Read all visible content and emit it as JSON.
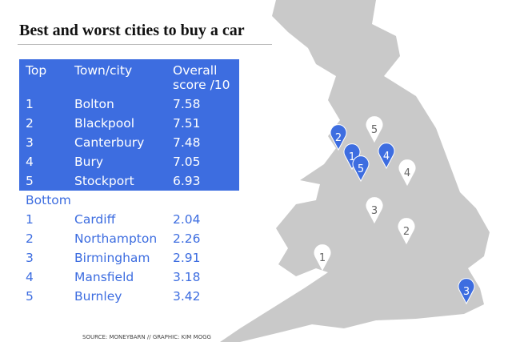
{
  "header": {
    "title": "Best and worst cities to buy a car"
  },
  "table": {
    "columns": [
      "Top",
      "Town/city",
      "Overall score /10"
    ],
    "top_rows": [
      [
        1,
        "Bolton",
        7.58
      ],
      [
        2,
        "Blackpool",
        7.51
      ],
      [
        3,
        "Canterbury",
        7.48
      ],
      [
        4,
        "Bury",
        7.05
      ],
      [
        5,
        "Stockport",
        6.93
      ]
    ],
    "bottom_label": "Bottom",
    "bottom_rows": [
      [
        1,
        "Cardiff",
        2.04
      ],
      [
        2,
        "Northampton",
        2.26
      ],
      [
        3,
        "Birmingham",
        2.91
      ],
      [
        4,
        "Mansfield",
        3.18
      ],
      [
        5,
        "Burnley",
        3.42
      ]
    ]
  },
  "map": {
    "top_pins": [
      "1",
      "2",
      "3",
      "4",
      "5"
    ],
    "bottom_pins": [
      "1",
      "2",
      "3",
      "4",
      "5"
    ]
  },
  "footer": {
    "source": "SOURCE: MONEYBARN // GRAPHIC: KIM MOGG"
  }
}
